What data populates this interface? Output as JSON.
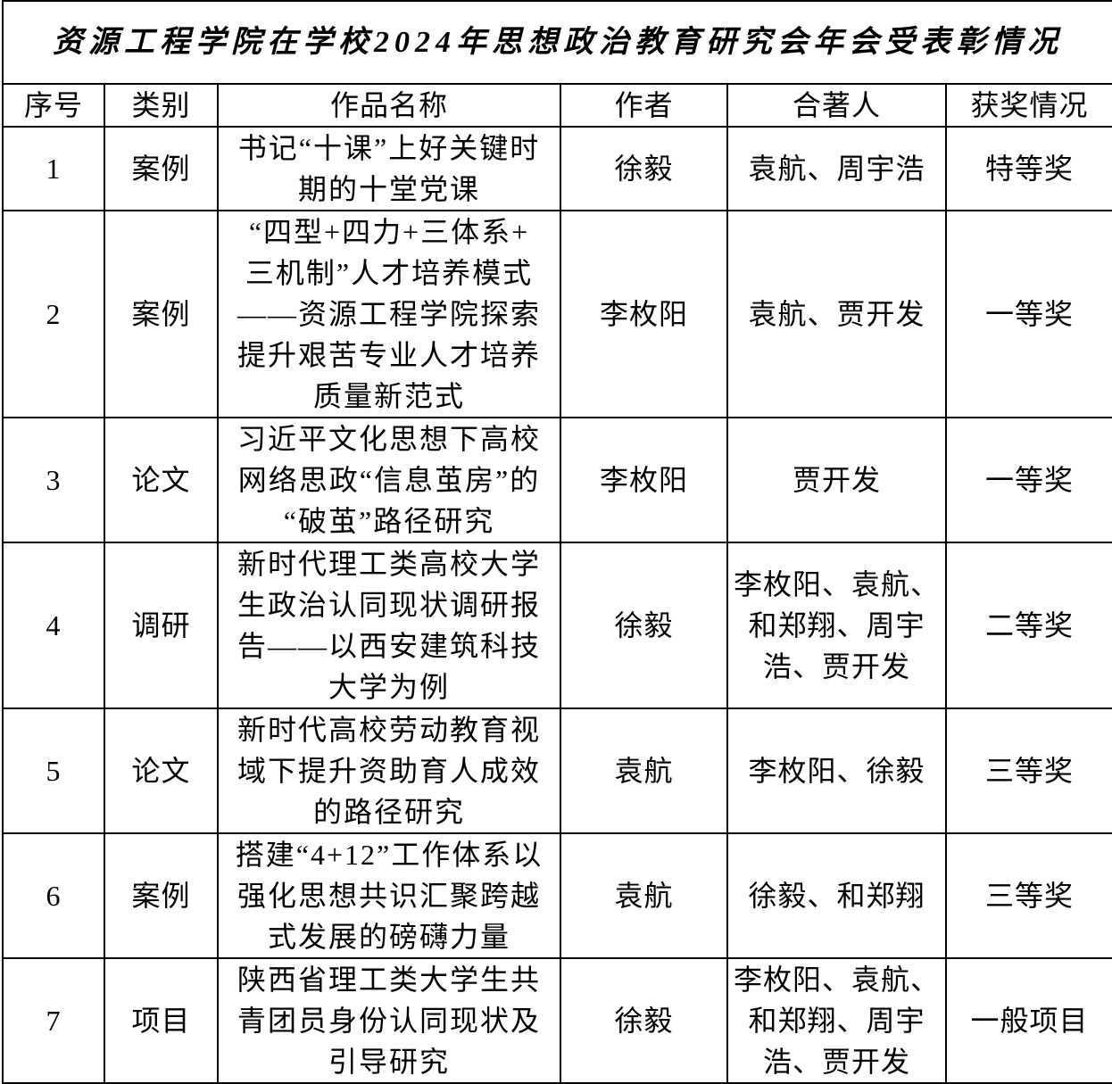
{
  "title": "资源工程学院在学校2024年思想政治教育研究会年会受表彰情况",
  "headers": [
    "序号",
    "类别",
    "作品名称",
    "作者",
    "合著人",
    "获奖情况"
  ],
  "rows": [
    {
      "no": "1",
      "type": "案例",
      "name": "书记“十课”上好关键时\n期的十堂党课",
      "author": "徐毅",
      "coauthors": "袁航、周宇浩",
      "award": "特等奖"
    },
    {
      "no": "2",
      "type": "案例",
      "name": "“四型+四力+三体系+\n三机制”人才培养模式\n——资源工程学院探索\n提升艰苦专业人才培养\n质量新范式",
      "author": "李枚阳",
      "coauthors": "袁航、贾开发",
      "award": "一等奖"
    },
    {
      "no": "3",
      "type": "论文",
      "name": "习近平文化思想下高校\n网络思政“信息茧房”的\n“破茧”路径研究",
      "author": "李枚阳",
      "coauthors": "贾开发",
      "award": "一等奖"
    },
    {
      "no": "4",
      "type": "调研",
      "name": "新时代理工类高校大学\n生政治认同现状调研报\n告——以西安建筑科技\n大学为例",
      "author": "徐毅",
      "coauthors": "李枚阳、袁航、\n和郑翔、周宇\n浩、贾开发",
      "award": "二等奖"
    },
    {
      "no": "5",
      "type": "论文",
      "name": "新时代高校劳动教育视\n域下提升资助育人成效\n的路径研究",
      "author": "袁航",
      "coauthors": "李枚阳、徐毅",
      "award": "三等奖"
    },
    {
      "no": "6",
      "type": "案例",
      "name": "搭建“4+12”工作体系以\n强化思想共识汇聚跨越\n式发展的磅礴力量",
      "author": "袁航",
      "coauthors": "徐毅、和郑翔",
      "award": "三等奖"
    },
    {
      "no": "7",
      "type": "项目",
      "name": "陕西省理工类大学生共\n青团员身份认同现状及\n引导研究",
      "author": "徐毅",
      "coauthors": "李枚阳、袁航、\n和郑翔、周宇\n浩、贾开发",
      "award": "一般项目"
    }
  ]
}
